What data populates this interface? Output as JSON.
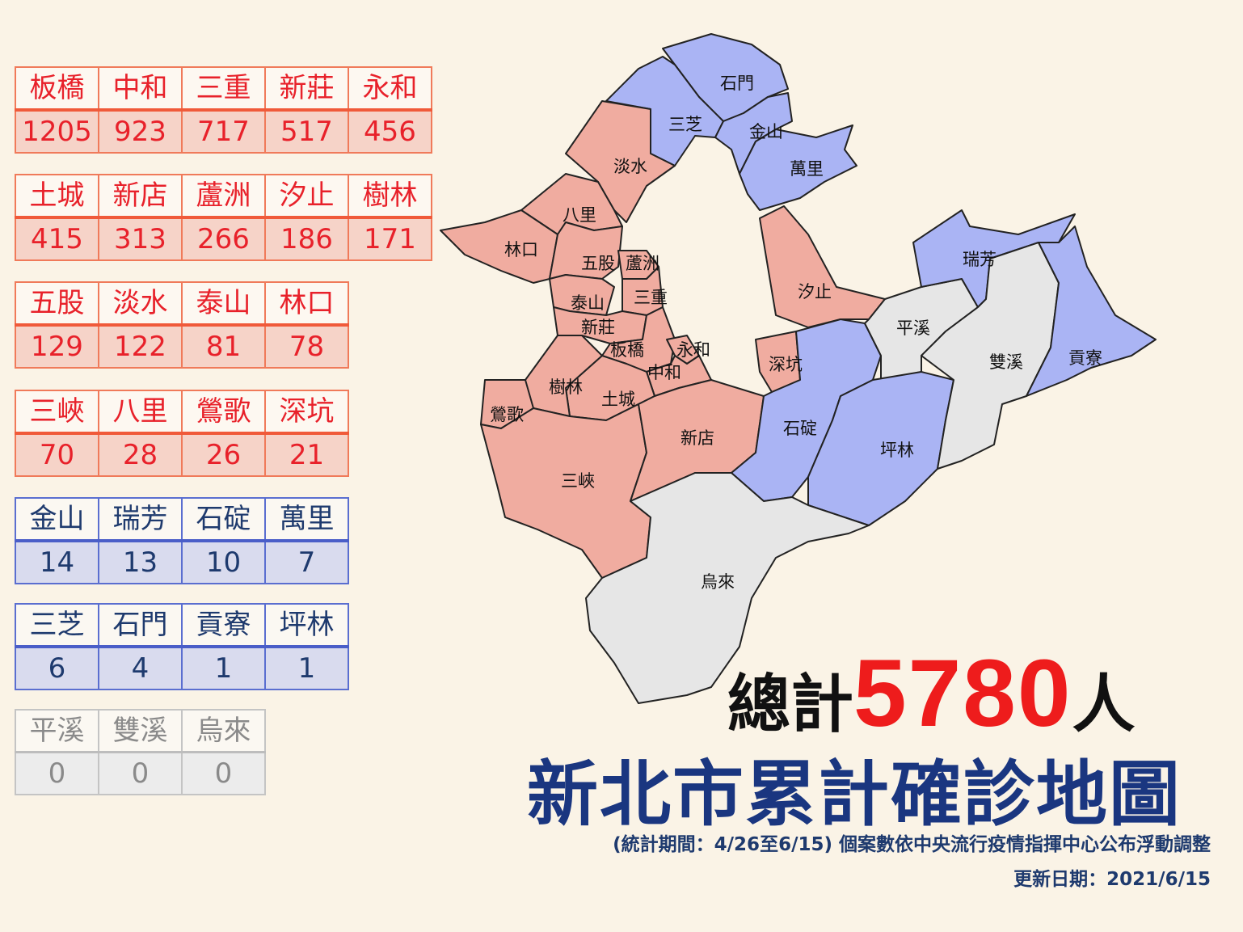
{
  "colors": {
    "high": "#f0aca0",
    "low": "#aab4f4",
    "zero": "#e6e6e6",
    "title": "#1a3680",
    "total": "#ee1c1c"
  },
  "tables": [
    {
      "style": "red",
      "names": [
        "板橋",
        "中和",
        "三重",
        "新莊",
        "永和"
      ],
      "values": [
        "1205",
        "923",
        "717",
        "517",
        "456"
      ]
    },
    {
      "style": "red",
      "names": [
        "土城",
        "新店",
        "蘆洲",
        "汐止",
        "樹林"
      ],
      "values": [
        "415",
        "313",
        "266",
        "186",
        "171"
      ]
    },
    {
      "style": "red",
      "names": [
        "五股",
        "淡水",
        "泰山",
        "林口"
      ],
      "values": [
        "129",
        "122",
        "81",
        "78"
      ]
    },
    {
      "style": "red",
      "names": [
        "三峽",
        "八里",
        "鶯歌",
        "深坑"
      ],
      "values": [
        "70",
        "28",
        "26",
        "21"
      ]
    },
    {
      "style": "blue",
      "names": [
        "金山",
        "瑞芳",
        "石碇",
        "萬里"
      ],
      "values": [
        "14",
        "13",
        "10",
        "7"
      ]
    },
    {
      "style": "blue",
      "names": [
        "三芝",
        "石門",
        "貢寮",
        "坪林"
      ],
      "values": [
        "6",
        "4",
        "1",
        "1"
      ]
    },
    {
      "style": "gray",
      "names": [
        "平溪",
        "雙溪",
        "烏來"
      ],
      "values": [
        "0",
        "0",
        "0"
      ]
    }
  ],
  "map": {
    "districts": [
      {
        "name": "石門",
        "level": "low"
      },
      {
        "name": "三芝",
        "level": "low"
      },
      {
        "name": "金山",
        "level": "low"
      },
      {
        "name": "萬里",
        "level": "low"
      },
      {
        "name": "淡水",
        "level": "high"
      },
      {
        "name": "八里",
        "level": "high"
      },
      {
        "name": "林口",
        "level": "high"
      },
      {
        "name": "五股",
        "level": "high"
      },
      {
        "name": "蘆洲",
        "level": "high"
      },
      {
        "name": "三重",
        "level": "high"
      },
      {
        "name": "泰山",
        "level": "high"
      },
      {
        "name": "新莊",
        "level": "high"
      },
      {
        "name": "板橋",
        "level": "high"
      },
      {
        "name": "永和",
        "level": "high"
      },
      {
        "name": "中和",
        "level": "high"
      },
      {
        "name": "土城",
        "level": "high"
      },
      {
        "name": "樹林",
        "level": "high"
      },
      {
        "name": "鶯歌",
        "level": "high"
      },
      {
        "name": "三峽",
        "level": "high"
      },
      {
        "name": "新店",
        "level": "high"
      },
      {
        "name": "汐止",
        "level": "high"
      },
      {
        "name": "深坑",
        "level": "high"
      },
      {
        "name": "石碇",
        "level": "low"
      },
      {
        "name": "平溪",
        "level": "zero"
      },
      {
        "name": "坪林",
        "level": "low"
      },
      {
        "name": "瑞芳",
        "level": "low"
      },
      {
        "name": "雙溪",
        "level": "zero"
      },
      {
        "name": "貢寮",
        "level": "low"
      },
      {
        "name": "烏來",
        "level": "zero"
      }
    ]
  },
  "total": {
    "prefix": "總計",
    "number": "5780",
    "suffix": "人"
  },
  "title": "新北市累計確診地圖",
  "note": "(統計期間：4/26至6/15) 個案數依中央流行疫情指揮中心公布浮動調整",
  "updated": "更新日期：2021/6/15"
}
